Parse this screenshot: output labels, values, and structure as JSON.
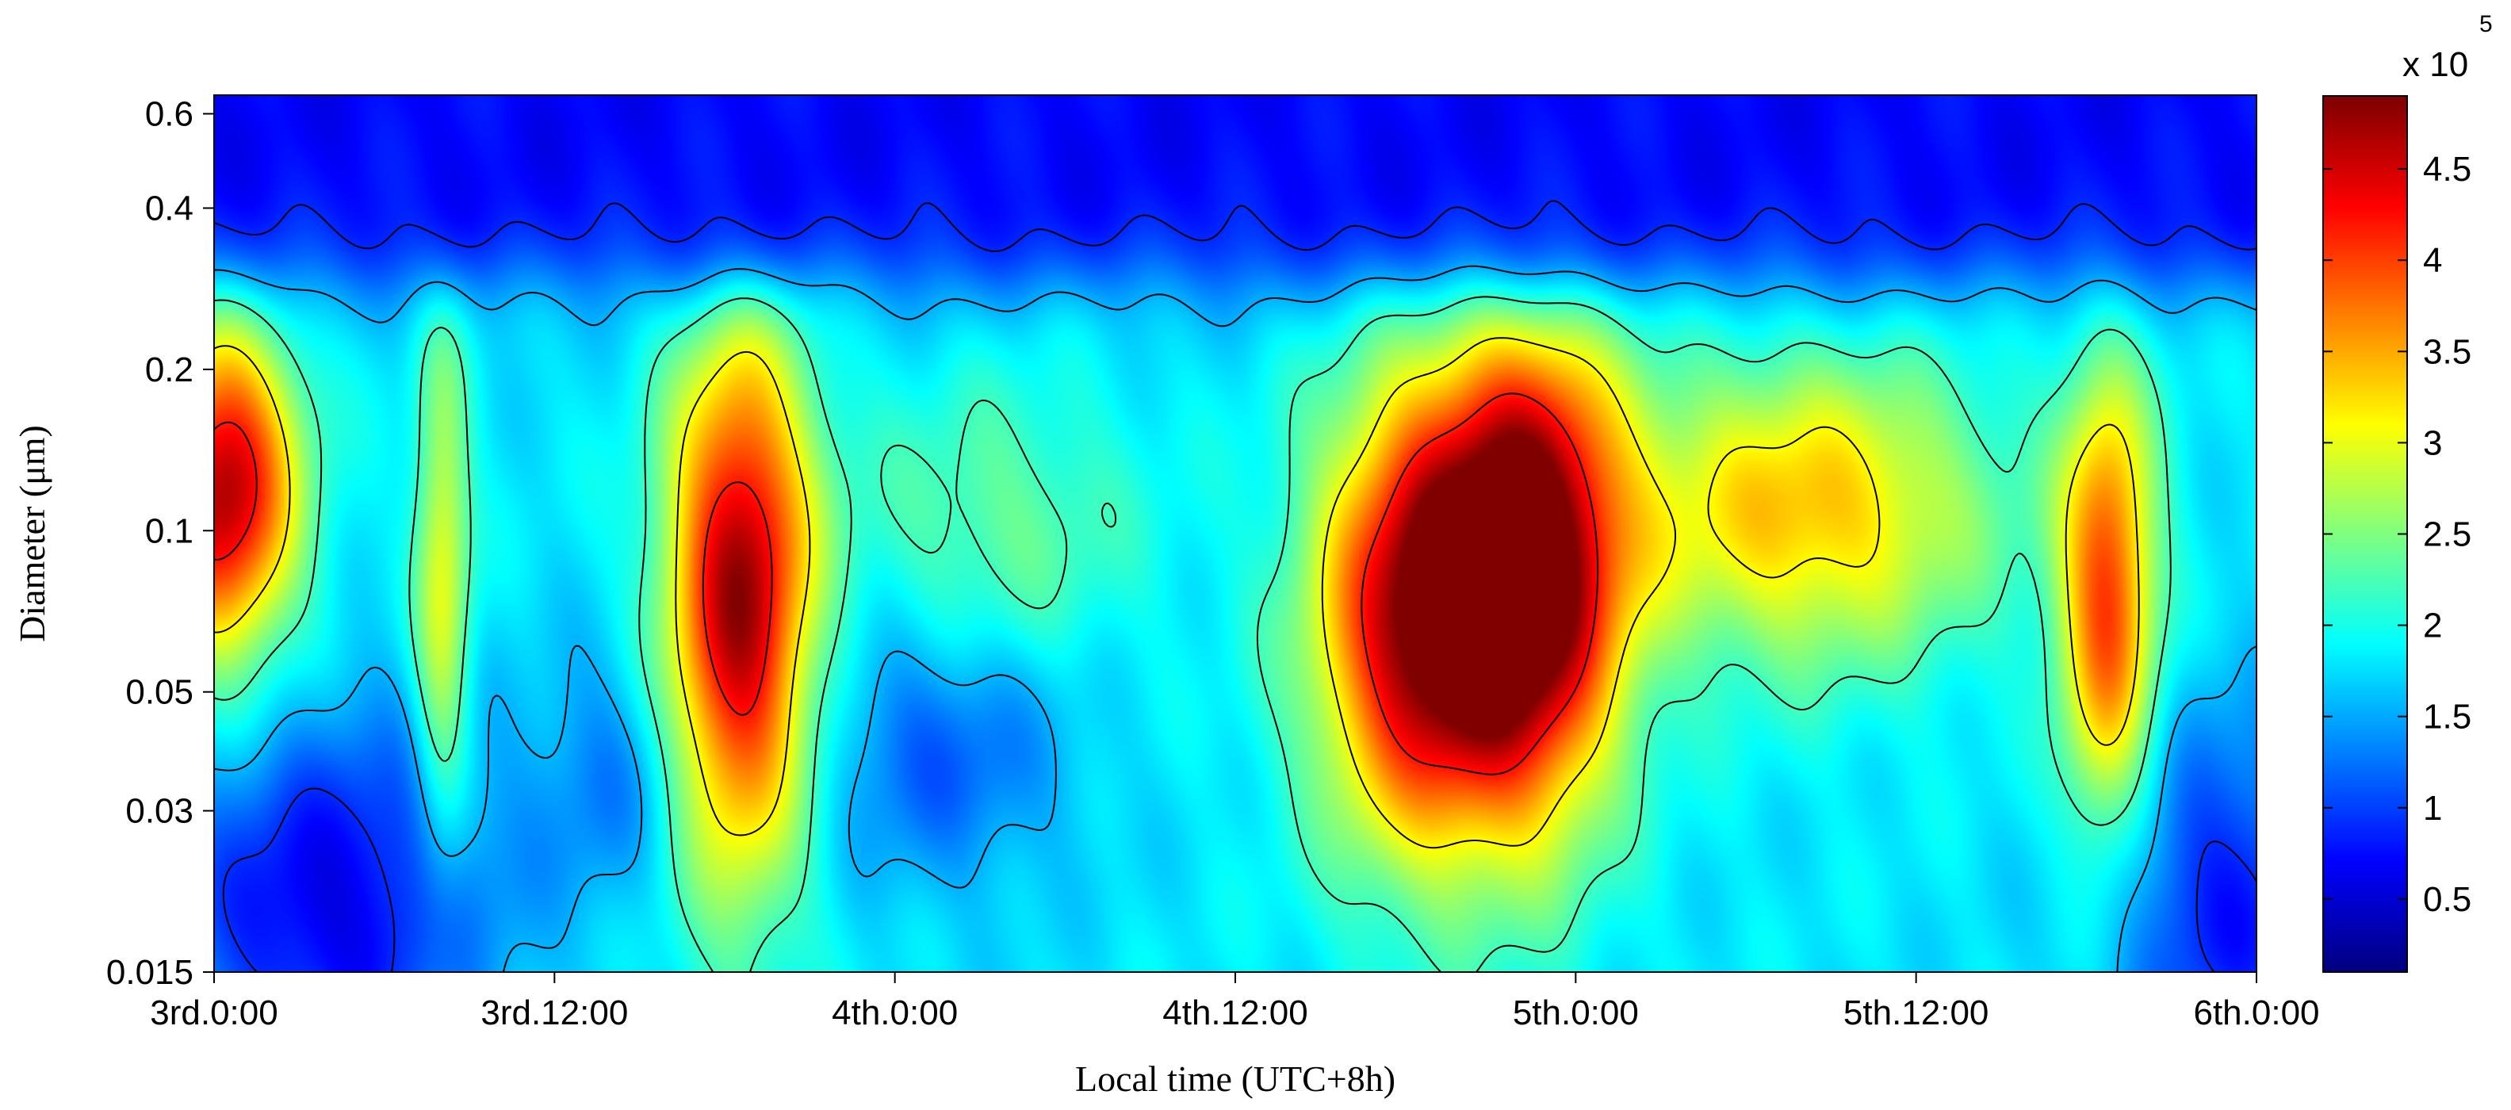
{
  "chart_data": {
    "type": "heatmap",
    "title": "",
    "xlabel": "Local time (UTC+8h)",
    "ylabel": "Diameter (μm)",
    "x_ticks": [
      "3rd.0:00",
      "3rd.12:00",
      "4th.0:00",
      "4th.12:00",
      "5th.0:00",
      "5th.12:00",
      "6th.0:00"
    ],
    "x_range_hours": [
      0,
      72
    ],
    "y_scale": "log",
    "y_ticks": [
      0.015,
      0.03,
      0.05,
      0.1,
      0.2,
      0.4,
      0.6
    ],
    "y_tick_labels": [
      "0.015",
      "0.03",
      "0.05",
      "0.1",
      "0.2",
      "0.4",
      "0.6"
    ],
    "y_range_um": [
      0.015,
      0.65
    ],
    "colorbar": {
      "exponent_label": "x 10",
      "exponent": "5",
      "ticks": [
        "0.5",
        "1",
        "1.5",
        "2",
        "2.5",
        "3",
        "3.5",
        "4",
        "4.5"
      ],
      "tick_values": [
        0.5,
        1,
        1.5,
        2,
        2.5,
        3,
        3.5,
        4,
        4.5
      ],
      "range": [
        0.1,
        4.9
      ]
    },
    "colormap": "jet",
    "contour_levels": [
      0.9,
      1.55,
      2.2,
      3.1,
      4.2
    ],
    "background_level": 1.8,
    "top_level": 0.7,
    "modes": [
      {
        "t_center_h": 0.3,
        "d_center_um": 0.12,
        "t_width_h": 1.8,
        "log_d_width": 0.22,
        "amplitude": 2.9
      },
      {
        "t_center_h": 8.0,
        "d_center_um": 0.08,
        "t_width_h": 0.7,
        "log_d_width": 0.35,
        "amplitude": 1.2
      },
      {
        "t_center_h": 18.5,
        "d_center_um": 0.075,
        "t_width_h": 1.8,
        "log_d_width": 0.36,
        "amplitude": 3.0
      },
      {
        "t_center_h": 27.5,
        "d_center_um": 0.1,
        "t_width_h": 3.5,
        "log_d_width": 0.2,
        "amplitude": 0.6
      },
      {
        "t_center_h": 42.5,
        "d_center_um": 0.07,
        "t_width_h": 2.6,
        "log_d_width": 0.3,
        "amplitude": 3.0
      },
      {
        "t_center_h": 46.5,
        "d_center_um": 0.085,
        "t_width_h": 2.3,
        "log_d_width": 0.32,
        "amplitude": 3.1
      },
      {
        "t_center_h": 56.0,
        "d_center_um": 0.11,
        "t_width_h": 4.6,
        "log_d_width": 0.2,
        "amplitude": 1.6
      },
      {
        "t_center_h": 66.7,
        "d_center_um": 0.075,
        "t_width_h": 1.2,
        "log_d_width": 0.3,
        "amplitude": 2.2
      },
      {
        "t_center_h": 25.5,
        "d_center_um": 0.04,
        "t_width_h": 3.2,
        "log_d_width": 0.18,
        "amplitude": -0.7
      },
      {
        "t_center_h": 14.0,
        "d_center_um": 0.035,
        "t_width_h": 2.0,
        "log_d_width": 0.17,
        "amplitude": -0.5
      },
      {
        "t_center_h": 4.0,
        "d_center_um": 0.02,
        "t_width_h": 4.0,
        "log_d_width": 0.25,
        "amplitude": -1.2
      },
      {
        "t_center_h": 71.0,
        "d_center_um": 0.02,
        "t_width_h": 3.0,
        "log_d_width": 0.25,
        "amplitude": -1.0
      }
    ],
    "grid": false,
    "legend": "colorbar-right"
  }
}
